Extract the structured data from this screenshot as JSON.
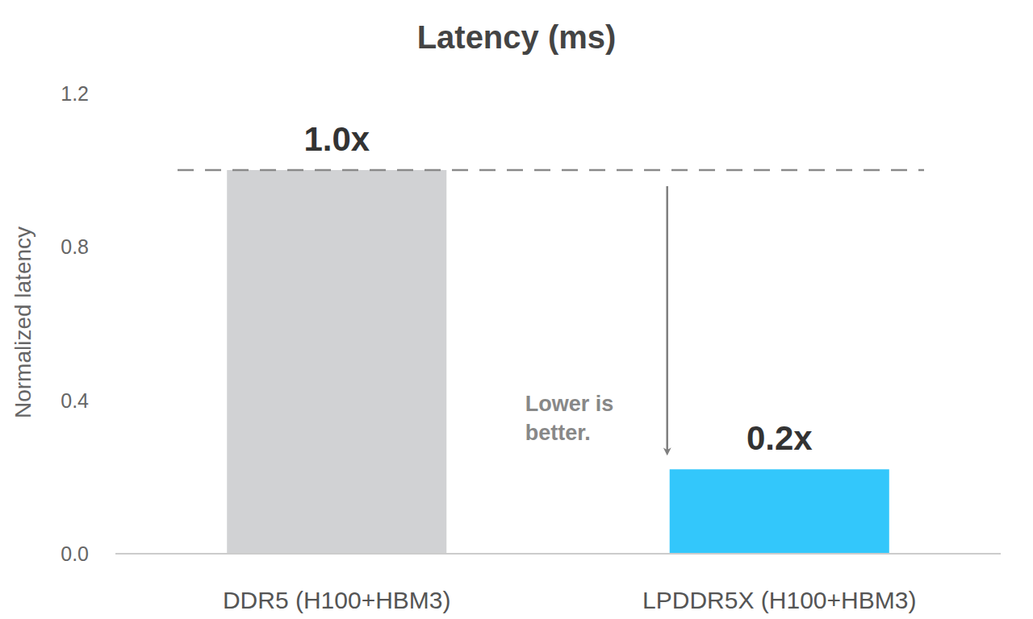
{
  "chart_data": {
    "type": "bar",
    "title": "Latency (ms)",
    "y_label": "Normalized latency",
    "categories": [
      "DDR5 (H100+HBM3)",
      "LPDDR5X (H100+HBM3)"
    ],
    "values": [
      1.0,
      0.22
    ],
    "value_labels": [
      "1.0x",
      "0.2x"
    ],
    "data_labels": true,
    "colors": [
      "#d1d2d4",
      "#33c7fb"
    ],
    "ylim": [
      0,
      1.2
    ],
    "yticks": [
      {
        "value": 0,
        "label": "0.0"
      },
      0.4,
      0.8,
      1.2
    ],
    "grid": false,
    "annotations": [
      {
        "text": "Lower is better."
      }
    ]
  }
}
